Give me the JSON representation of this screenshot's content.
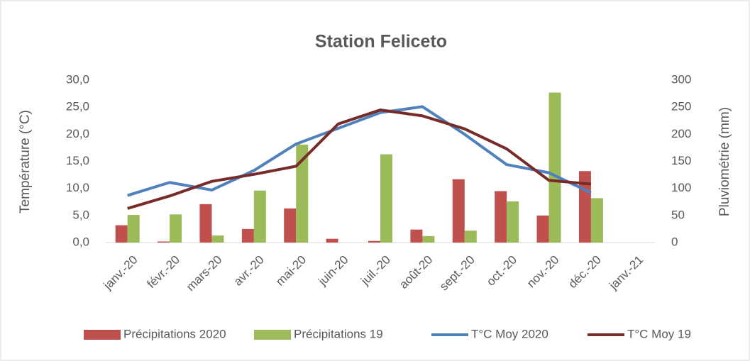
{
  "chart_data": {
    "type": "bar_line",
    "title": "Station Feliceto",
    "y_label": "Température (°C)",
    "y2_label": "Pluviométrie (mm)",
    "categories": [
      "janv.-20",
      "févr.-20",
      "mars-20",
      "avr.-20",
      "mai-20",
      "juin-20",
      "juil.-20",
      "août-20",
      "sept.-20",
      "oct.-20",
      "nov.-20",
      "déc.-20",
      "janv.-21"
    ],
    "series": [
      {
        "name": "Précipitations 2020",
        "type": "bar",
        "axis": "y2",
        "color": "#c0504d",
        "values": [
          32,
          2,
          71,
          25,
          63,
          7,
          3,
          24,
          117,
          95,
          50,
          132,
          null
        ]
      },
      {
        "name": "Précipitations 19",
        "type": "bar",
        "axis": "y2",
        "color": "#9bbb59",
        "values": [
          51,
          52,
          13,
          96,
          181,
          0,
          163,
          12,
          22,
          76,
          277,
          82,
          null
        ]
      },
      {
        "name": "T°C Moy 2020",
        "type": "line",
        "axis": "y",
        "color": "#4f81bd",
        "values": [
          8.7,
          11.1,
          9.7,
          13.3,
          18.2,
          21.1,
          24.0,
          25.1,
          20.0,
          14.4,
          12.9,
          9.2,
          null
        ]
      },
      {
        "name": "T°C Moy 19",
        "type": "line",
        "axis": "y",
        "color": "#772c2a",
        "values": [
          6.3,
          8.6,
          11.3,
          12.6,
          14.1,
          21.9,
          24.5,
          23.4,
          21.0,
          17.3,
          11.5,
          10.8,
          null
        ]
      }
    ],
    "ylim": [
      0,
      30
    ],
    "yticks": [
      {
        "value": 0,
        "label": "0,0"
      },
      {
        "value": 5,
        "label": "5,0"
      },
      {
        "value": 10,
        "label": "10,0"
      },
      {
        "value": 15,
        "label": "15,0"
      },
      {
        "value": 20,
        "label": "20,0"
      },
      {
        "value": 25,
        "label": "25,0"
      },
      {
        "value": 30,
        "label": "30,0"
      }
    ],
    "y2lim": [
      0,
      300
    ],
    "y2ticks": [
      0,
      50,
      100,
      150,
      200,
      250,
      300
    ],
    "legend": "bottom"
  }
}
